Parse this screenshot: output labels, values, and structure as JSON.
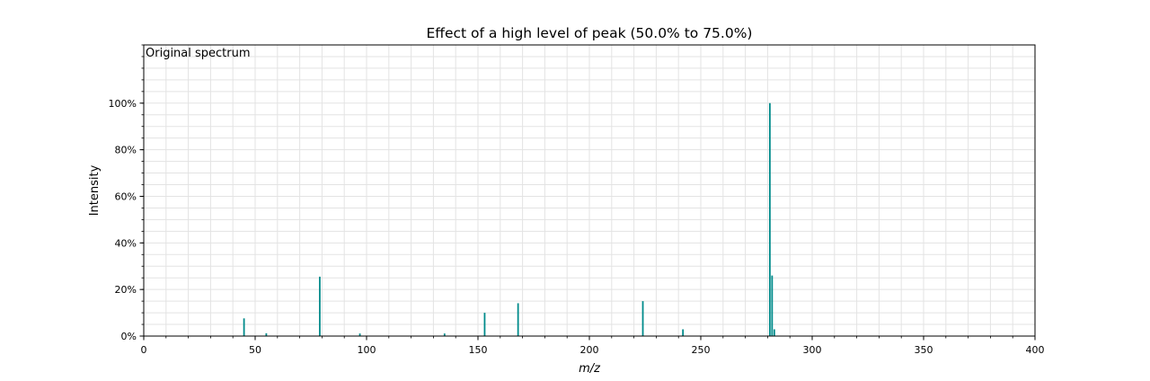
{
  "chart_data": {
    "type": "bar",
    "title": "Effect of a high level of peak (50.0% to 75.0%)",
    "xlabel": "m/z",
    "ylabel": "Intensity",
    "annotation": "Original spectrum",
    "xlim": [
      0,
      400
    ],
    "ylim": [
      0,
      125
    ],
    "xticks": [
      0,
      50,
      100,
      150,
      200,
      250,
      300,
      350,
      400
    ],
    "xtick_labels": [
      "0",
      "50",
      "100",
      "150",
      "200",
      "250",
      "300",
      "350",
      "400"
    ],
    "yticks": [
      0,
      20,
      40,
      60,
      80,
      100
    ],
    "ytick_labels": [
      "0%",
      "20%",
      "40%",
      "60%",
      "80%",
      "100%"
    ],
    "grid": true,
    "bar_color": "#008b8b",
    "series": [
      {
        "x": [
          45,
          55,
          79,
          97,
          135,
          153,
          168,
          224,
          242,
          281,
          282,
          283
        ],
        "values": [
          7.6,
          1.2,
          25.5,
          1.1,
          1.1,
          10.0,
          14.1,
          15.0,
          2.9,
          100.0,
          26.0,
          2.9
        ]
      }
    ]
  }
}
